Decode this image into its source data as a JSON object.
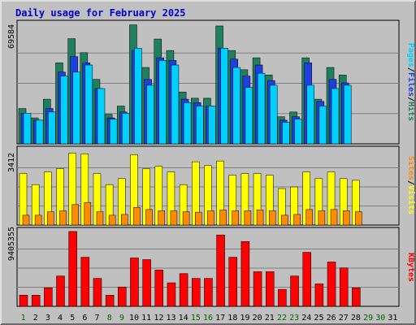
{
  "chart_data": {
    "type": "bar",
    "title": "Daily usage for February 2025",
    "categories": [
      "1",
      "2",
      "3",
      "4",
      "5",
      "6",
      "7",
      "8",
      "9",
      "10",
      "11",
      "12",
      "13",
      "14",
      "15",
      "16",
      "17",
      "18",
      "19",
      "20",
      "21",
      "22",
      "23",
      "24",
      "25",
      "26",
      "27",
      "28",
      "29",
      "30",
      "31"
    ],
    "day_colors": [
      "#006600",
      "#000000",
      "#000000",
      "#000000",
      "#000000",
      "#000000",
      "#000000",
      "#006600",
      "#006600",
      "#000000",
      "#000000",
      "#000000",
      "#000000",
      "#000000",
      "#006600",
      "#006600",
      "#000000",
      "#000000",
      "#000000",
      "#000000",
      "#000000",
      "#006600",
      "#006600",
      "#000000",
      "#000000",
      "#000000",
      "#000000",
      "#000000",
      "#006600",
      "#006600",
      "#000000"
    ],
    "panels": [
      {
        "id": "requests",
        "ymax_label": "69584",
        "ymax": 69584,
        "series": [
          {
            "name": "Hits",
            "color": "#1f7f5f",
            "values": [
              20283,
              14907,
              25650,
              46565,
              60437,
              52377,
              37038,
              16937,
              21718,
              68389,
              43879,
              60207,
              53633,
              29795,
              26209,
              26209,
              67731,
              53633,
              42562,
              49445,
              39578,
              15566,
              18286,
              49445,
              25650,
              43879,
              39578,
              null,
              null,
              null,
              null
            ]
          },
          {
            "name": "Files",
            "color": "#1f3fe0",
            "values": [
              17595,
              13595,
              20283,
              41222,
              50105,
              46565,
              31777,
              14907,
              18286,
              53633,
              37038,
              49445,
              47911,
              25650,
              23668,
              21718,
              54976,
              48683,
              38974,
              45291,
              36347,
              13595,
              15566,
              46565,
              24342,
              37038,
              35023,
              null,
              null,
              null,
              null
            ]
          },
          {
            "name": "Pages",
            "color": "#00d0ff",
            "values": [
              17595,
              13595,
              18286,
              38974,
              41222,
              45291,
              31777,
              14141,
              17595,
              54976,
              33687,
              47911,
              45291,
              23668,
              21718,
              21718,
              54976,
              43879,
              32415,
              40575,
              33687,
              12354,
              14141,
              33687,
              21718,
              31777,
              33687,
              null,
              null,
              null,
              null
            ]
          }
        ]
      },
      {
        "id": "visits",
        "ymax_label": "3412",
        "ymax": 3412,
        "series": [
          {
            "name": "Visits",
            "color": "#ffff00",
            "values": [
              2303,
              1808,
              2375,
              2522,
              3215,
              3180,
              2303,
              1808,
              2076,
              3141,
              2512,
              2620,
              2375,
              1808,
              2827,
              2657,
              2863,
              2226,
              2303,
              2303,
              2226,
              1632,
              1704,
              2375,
              2076,
              2375,
              2076,
              2000,
              null,
              null,
              null
            ]
          },
          {
            "name": "Sites",
            "color": "#ff8c00",
            "values": [
              439,
              439,
              596,
              640,
              914,
              1010,
              596,
              439,
              474,
              787,
              694,
              640,
              640,
              596,
              576,
              640,
              676,
              640,
              640,
              676,
              640,
              439,
              474,
              694,
              640,
              694,
              640,
              596,
              null,
              null,
              null
            ]
          }
        ]
      },
      {
        "id": "kbytes",
        "ymax_label": "9405355",
        "ymax": 9405355,
        "series": [
          {
            "name": "KBytes",
            "color": "#ff0000",
            "values": [
              1377000,
              1377000,
              2279000,
              3736000,
              9218000,
              6047000,
              3441000,
              1377000,
              2379000,
              5959000,
              5753000,
              4470000,
              2897000,
              4030000,
              3441000,
              3441000,
              8788000,
              6047000,
              7982000,
              4264000,
              4264000,
              2086000,
              3736000,
              6650000,
              2764000,
              5459000,
              4740000,
              2279000,
              null,
              null,
              null
            ]
          }
        ]
      }
    ],
    "legend_right": [
      "Pages",
      "/",
      "Files",
      "/",
      "Hits",
      "Sites",
      "/",
      "Visits",
      "KBytes"
    ]
  },
  "colors": {
    "background": "#c0c0c0",
    "plot_area": "#c0c0c0",
    "title": "#0000cc",
    "weekday_label": "#000000",
    "weekend_label": "#006600"
  }
}
